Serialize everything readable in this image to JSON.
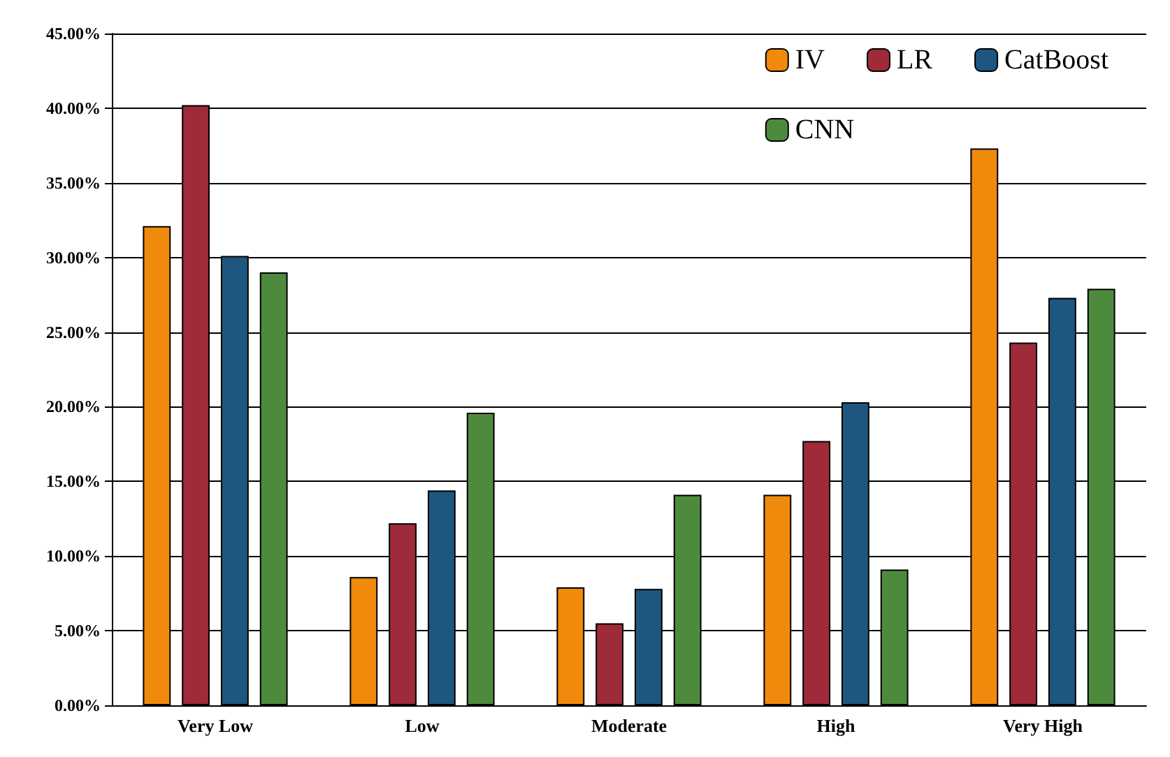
{
  "chart_data": {
    "type": "bar",
    "categories": [
      "Very Low",
      "Low",
      "Moderate",
      "High",
      "Very High"
    ],
    "series": [
      {
        "name": "IV",
        "color": "#f08a0c",
        "values": [
          32.1,
          8.6,
          7.9,
          14.1,
          37.3
        ]
      },
      {
        "name": "LR",
        "color": "#9e2a3a",
        "values": [
          40.2,
          12.2,
          5.5,
          17.7,
          24.3
        ]
      },
      {
        "name": "CatBoost",
        "color": "#1f5680",
        "values": [
          30.1,
          14.4,
          7.8,
          20.3,
          27.3
        ]
      },
      {
        "name": "CNN",
        "color": "#4e8a3e",
        "values": [
          29.0,
          19.6,
          14.1,
          9.1,
          27.9
        ]
      }
    ],
    "ylim": [
      0,
      45
    ],
    "yticks": [
      {
        "value": 0,
        "label": "0.00%"
      },
      {
        "value": 5,
        "label": "5.00%"
      },
      {
        "value": 10,
        "label": "10.00%"
      },
      {
        "value": 15,
        "label": "15.00%"
      },
      {
        "value": 20,
        "label": "20.00%"
      },
      {
        "value": 25,
        "label": "25.00%"
      },
      {
        "value": 30,
        "label": "30.00%"
      },
      {
        "value": 35,
        "label": "35.00%"
      },
      {
        "value": 40,
        "label": "40.00%"
      },
      {
        "value": 45,
        "label": "45.00%"
      }
    ],
    "grid": "y",
    "legend": "top right"
  }
}
